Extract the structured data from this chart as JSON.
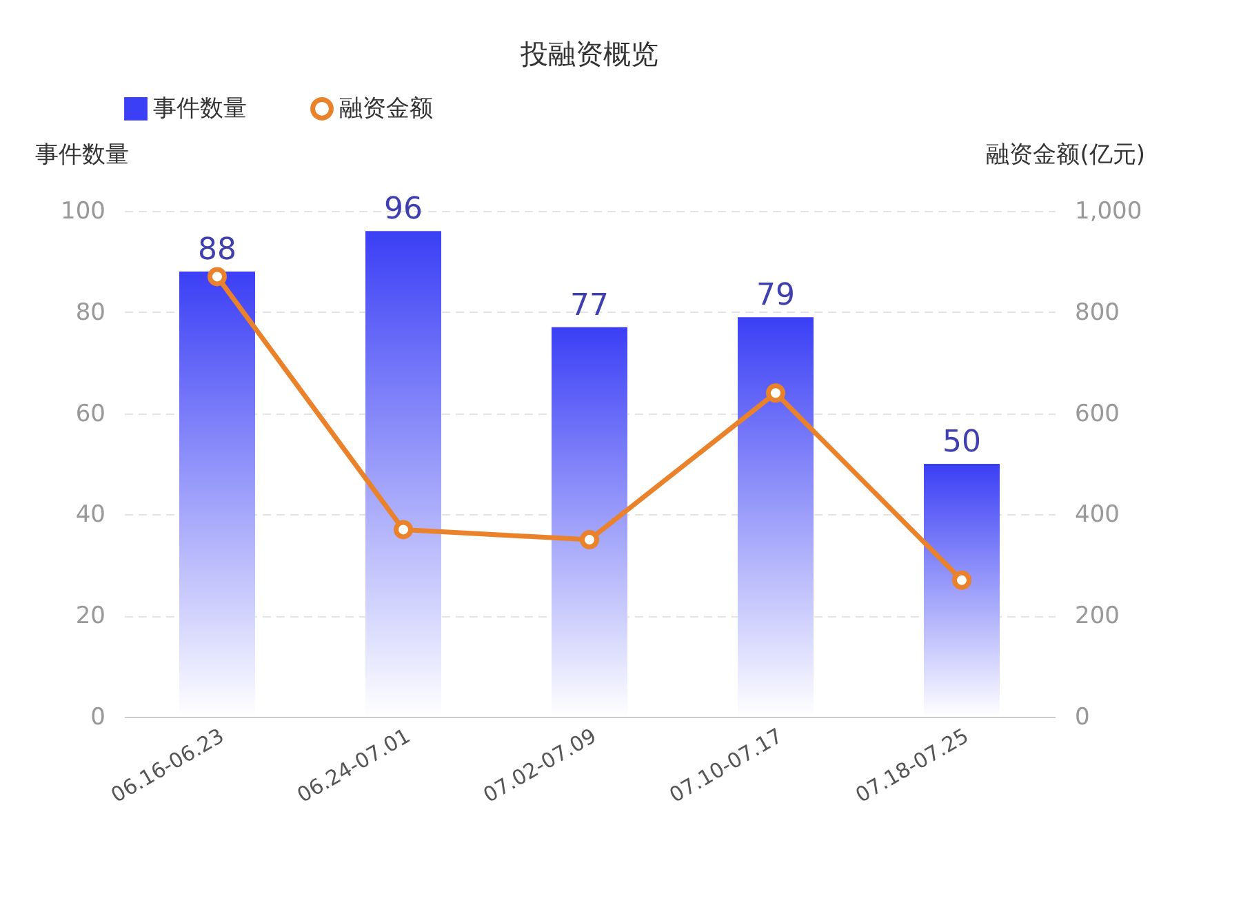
{
  "chart_data": {
    "type": "bar",
    "title": "投融资概览",
    "ylabel": "事件数量",
    "y2label": "融资金额(亿元)",
    "categories": [
      "06.16-06.23",
      "06.24-07.01",
      "07.02-07.09",
      "07.10-07.17",
      "07.18-07.25"
    ],
    "series": [
      {
        "name": "事件数量",
        "type": "bar",
        "color": "#3b3ff5",
        "values": [
          88,
          96,
          77,
          79,
          50
        ],
        "value_labels": [
          "88",
          "96",
          "77",
          "79",
          "50"
        ]
      },
      {
        "name": "融资金额",
        "type": "line",
        "axis": "y2",
        "color": "#e9822a",
        "values": [
          870,
          370,
          350,
          640,
          270
        ]
      }
    ],
    "ylim": [
      0,
      100
    ],
    "yticks": [
      0,
      20,
      40,
      60,
      80,
      100
    ],
    "y2lim": [
      0,
      1000
    ],
    "y2ticks": [
      0,
      200,
      400,
      600,
      800,
      {
        "value": 1000,
        "label": "1,000"
      }
    ],
    "grid": "y",
    "legend": "top",
    "marker": "circle",
    "line_style": "solid"
  }
}
